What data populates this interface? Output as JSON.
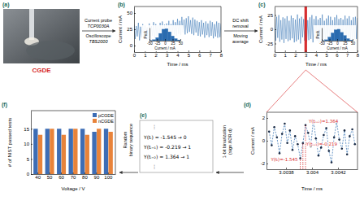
{
  "chart_data": [
    {
      "type": "line",
      "x": [
        0,
        0.1,
        0.2,
        0.3,
        0.4,
        0.5,
        0.6,
        0.7,
        0.8,
        0.9,
        1,
        1.1,
        1.2,
        1.3,
        1.4,
        1.5,
        1.6,
        1.7,
        1.8,
        1.9,
        2,
        2.1,
        2.2,
        2.3,
        2.4,
        2.5,
        2.6,
        2.7,
        2.8,
        2.9,
        3,
        3.1,
        3.2,
        3.3,
        3.4,
        3.5,
        3.6,
        3.7,
        3.8,
        3.9,
        4,
        4.1,
        4.2,
        4.3,
        4.4,
        4.5,
        4.6,
        4.7,
        4.8,
        4.9,
        5,
        5.1,
        5.2,
        5.3,
        5.4,
        5.5,
        5.6,
        5.7,
        5.8,
        5.9,
        6,
        6.1,
        6.2,
        6.3,
        6.4,
        6.5,
        6.6,
        6.7,
        6.8,
        6.9,
        7,
        7.1,
        7.2,
        7.3,
        7.4,
        7.5,
        7.6,
        7.7,
        7.8,
        7.9,
        8
      ],
      "series": [
        {
          "color": "#2b6cb0",
          "values": [
            32,
            10,
            30,
            14,
            35,
            8,
            29,
            12,
            33,
            11,
            31,
            13,
            28,
            9,
            34,
            12,
            30,
            15,
            36,
            11,
            33,
            14,
            31,
            10,
            35,
            13,
            37,
            12,
            32,
            16,
            34,
            11,
            38,
            14,
            33,
            12,
            39,
            17,
            36,
            15,
            41,
            18,
            38,
            16,
            44,
            20,
            40,
            17,
            42,
            19,
            45,
            21,
            39,
            18,
            43,
            16,
            40,
            20,
            38,
            15,
            36,
            14,
            39,
            17,
            35,
            12,
            37,
            16,
            34,
            13,
            38,
            15,
            36,
            11,
            33,
            14,
            37,
            12,
            35,
            13,
            34
          ]
        }
      ],
      "xlim": [
        0,
        8
      ],
      "xticks": [
        0,
        1,
        2,
        3,
        4,
        5,
        6,
        7,
        8
      ],
      "ylim": [
        -10,
        60
      ],
      "yticks": [
        0,
        25,
        50
      ],
      "xlabel": "Time / ms",
      "ylabel": "Current / mA"
    },
    {
      "type": "histogram",
      "bins": [
        -50,
        -40,
        -30,
        -20,
        -10,
        0,
        10,
        20,
        30,
        40,
        50
      ],
      "counts": [
        0.005,
        0.02,
        0.06,
        0.14,
        0.22,
        0.23,
        0.17,
        0.09,
        0.04,
        0.015
      ],
      "color": "#2b6cb0",
      "xlim": [
        -50,
        50
      ],
      "xticks": [
        -50,
        -25,
        0,
        25,
        50
      ],
      "ylim": [
        0,
        0.25
      ],
      "tick_labels": "x",
      "xlabel": "Current / mA",
      "ylabel": "Prob."
    },
    {
      "type": "line",
      "x": [
        0,
        0.1,
        0.2,
        0.3,
        0.4,
        0.5,
        0.6,
        0.7,
        0.8,
        0.9,
        1,
        1.1,
        1.2,
        1.3,
        1.4,
        1.5,
        1.6,
        1.7,
        1.8,
        1.9,
        2,
        2.1,
        2.2,
        2.3,
        2.4,
        2.5,
        2.6,
        2.7,
        2.8,
        2.9,
        3,
        3.1,
        3.2,
        3.3,
        3.4,
        3.5,
        3.6,
        3.7,
        3.8,
        3.9,
        4,
        4.1,
        4.2,
        4.3,
        4.4,
        4.5,
        4.6,
        4.7,
        4.8,
        4.9,
        5,
        5.1,
        5.2,
        5.3,
        5.4,
        5.5,
        5.6,
        5.7,
        5.8,
        5.9,
        6,
        6.1,
        6.2,
        6.3,
        6.4,
        6.5,
        6.6,
        6.7,
        6.8,
        6.9,
        7,
        7.1,
        7.2,
        7.3,
        7.4,
        7.5,
        7.6,
        7.7,
        7.8,
        7.9,
        8
      ],
      "series": [
        {
          "color": "#2b6cb0",
          "values": [
            18,
            -20,
            22,
            -15,
            25,
            -22,
            16,
            -18,
            21,
            -24,
            19,
            -17,
            23,
            -21,
            15,
            -19,
            24,
            -16,
            20,
            -23,
            17,
            -21,
            26,
            -18,
            19,
            -25,
            22,
            -14,
            18,
            -20,
            24,
            -22,
            16,
            -19,
            21,
            -17,
            25,
            -23,
            18,
            -16,
            23,
            -20,
            17,
            -24,
            20,
            -18,
            26,
            -21,
            15,
            -22,
            19,
            -17,
            24,
            -19,
            22,
            -25,
            16,
            -20,
            21,
            -18,
            25,
            -16,
            18,
            -23,
            20,
            -21,
            17,
            -19,
            24,
            -22,
            19,
            -15,
            23,
            -20,
            16,
            -24,
            21,
            -18,
            22,
            -17,
            20
          ]
        }
      ],
      "highlight_x": [
        3.0038,
        3.0042
      ],
      "highlight_color": "#d62728",
      "xlim": [
        0,
        8
      ],
      "xticks": [
        0,
        1,
        2,
        3,
        4,
        5,
        6,
        7,
        8
      ],
      "ylim": [
        -40,
        40
      ],
      "yticks": [
        -25,
        0,
        25
      ],
      "xlabel": "Time / ms",
      "ylabel": "Current / mA"
    },
    {
      "type": "histogram",
      "bins": [
        -50,
        -40,
        -30,
        -20,
        -10,
        0,
        10,
        20,
        30,
        40,
        50
      ],
      "counts": [
        0.004,
        0.018,
        0.07,
        0.15,
        0.21,
        0.22,
        0.16,
        0.1,
        0.04,
        0.012
      ],
      "color": "#2b6cb0",
      "xlim": [
        -50,
        50
      ],
      "xticks": [
        -50,
        -25,
        0,
        25,
        50
      ],
      "ylim": [
        0,
        0.25
      ],
      "tick_labels": "x",
      "xlabel": "Current / mA",
      "ylabel": "Prob."
    },
    {
      "type": "line",
      "x": [
        3.00367,
        3.00369,
        3.00371,
        3.00373,
        3.00375,
        3.00377,
        3.00379,
        3.00381,
        3.00383,
        3.00385,
        3.00387,
        3.00389,
        3.00391,
        3.00393,
        3.00395,
        3.00397,
        3.00399,
        3.00401,
        3.00403,
        3.00405,
        3.00407,
        3.00409,
        3.00411,
        3.00413,
        3.00415,
        3.00417,
        3.00419,
        3.00421,
        3.00423,
        3.00425,
        3.00427,
        3.00429,
        3.00431,
        3.00433
      ],
      "series": [
        {
          "color": "#2b6cb0",
          "marker": "circle",
          "line_style": "dashed",
          "values": [
            0.8,
            -0.4,
            1.2,
            0.3,
            -1.1,
            0.6,
            1.5,
            -0.2,
            0.9,
            -0.8,
            0.4,
            -0.3,
            -1.545,
            -0.219,
            1.364,
            0.7,
            -0.5,
            1.8,
            0.2,
            -1.3,
            -0.6,
            0.5,
            1.1,
            -0.9,
            -1.9,
            0.3,
            1.6,
            0.1,
            -0.7,
            0.9,
            -1.2,
            0.4,
            1.0,
            -0.3
          ]
        }
      ],
      "annotations": [
        {
          "text": "Y(tᵢ)=-1.545",
          "x": 3.00391,
          "y": -1.545,
          "color": "#d62728"
        },
        {
          "text": "Y(tᵢ₊₁)=-0.219",
          "x": 3.00393,
          "y": -0.219,
          "color": "#d62728"
        },
        {
          "text": "Y(tᵢ₊₂)=1.364",
          "x": 3.00395,
          "y": 1.364,
          "color": "#d62728"
        }
      ],
      "xlim": [
        3.00365,
        3.00435
      ],
      "xticks": [
        3.0038,
        3.004,
        3.0042
      ],
      "ylim": [
        -2.5,
        2.5
      ],
      "yticks": [
        -2,
        0,
        2
      ],
      "xlabel": "Time / ms",
      "ylabel": "Current / mA"
    },
    {
      "type": "bar",
      "categories": [
        "40",
        "50",
        "60",
        "70",
        "80",
        "90",
        "100"
      ],
      "series": [
        {
          "name": "pCGDE",
          "color": "#3d6db5",
          "values": [
            15,
            15,
            15,
            15,
            15,
            14,
            15
          ]
        },
        {
          "name": "nCGDE",
          "color": "#e8833a",
          "values": [
            13,
            15,
            13,
            15,
            13,
            15,
            14
          ]
        }
      ],
      "ylim": [
        0,
        21
      ],
      "yticks": [
        0,
        5,
        10,
        15
      ],
      "legend": "upper right",
      "xlabel": "Voltage / V",
      "ylabel": "# of NIST passed tests"
    }
  ],
  "diagram": {
    "panel_labels": [
      "(a)",
      "(b)",
      "(c)",
      "(d)",
      "(e)",
      "(f)"
    ],
    "photo_label": "CGDE",
    "arrow_ab": {
      "above": [
        "Current probe",
        "TCP0030A"
      ],
      "below": [
        "Oscilloscope",
        "TBS2000"
      ]
    },
    "arrow_bc": {
      "above": [
        "DC shift",
        "removal"
      ],
      "below": [
        "Moving",
        "average"
      ]
    },
    "arrow_de": {
      "lines": [
        "1-bit binarization",
        "(sign XOR d)"
      ]
    },
    "arrow_ef": {
      "lines": [
        "Random",
        "binary sequence"
      ]
    },
    "binarization_box": {
      "lines": [
        "⋮",
        "Y(tᵢ) = -1.545 → 0",
        "Y(tᵢ₊₁) = -0.219 → 1",
        "Y(tᵢ₊₂) = 1.364 → 1",
        "⋮"
      ]
    }
  }
}
